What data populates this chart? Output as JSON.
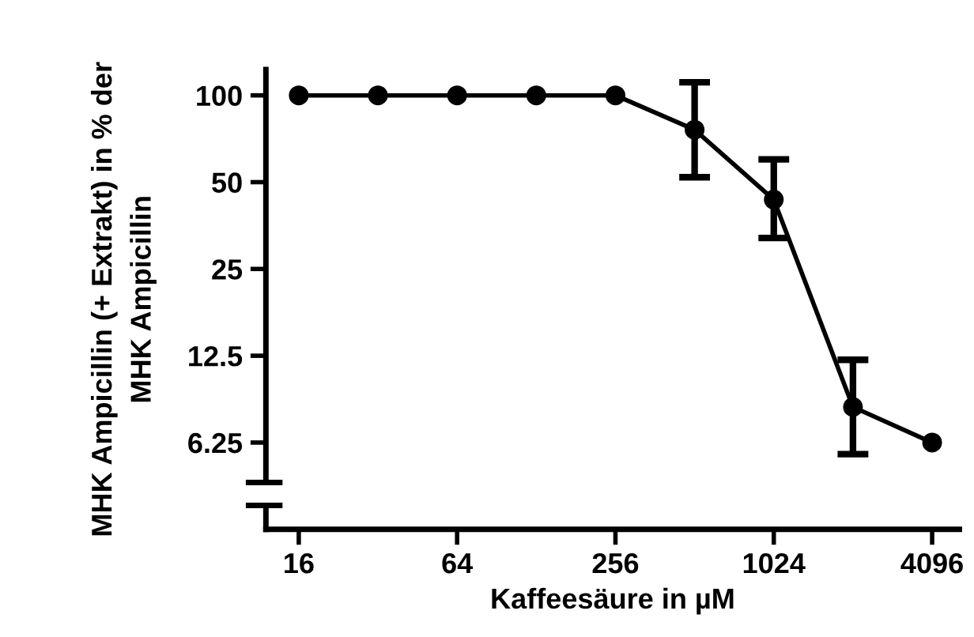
{
  "chart_data": {
    "type": "line",
    "xlabel": "Kaffeesäure in µM",
    "ylabel": "MHK Ampicillin (+ Extrakt) in % der\nMHK Ampicillin",
    "log": "xy",
    "x": [
      16,
      32,
      64,
      128,
      256,
      512,
      1024,
      2048,
      4096
    ],
    "series": [
      {
        "color": "#000000",
        "values": [
          100,
          100,
          100,
          100,
          100,
          76,
          43.5,
          8.3,
          6.25
        ],
        "errors": [
          null,
          null,
          null,
          null,
          null,
          [
            52,
            111
          ],
          [
            32,
            60
          ],
          [
            5.7,
            12.1
          ],
          null
        ]
      }
    ],
    "marker": "circle",
    "line_style": "solid",
    "xlim": [
      12,
      5200
    ],
    "xticks": [
      16,
      64,
      256,
      1024,
      4096
    ],
    "ylim": [
      3.125,
      123
    ],
    "yticks": [
      6.25,
      12.5,
      25,
      50,
      100
    ]
  }
}
